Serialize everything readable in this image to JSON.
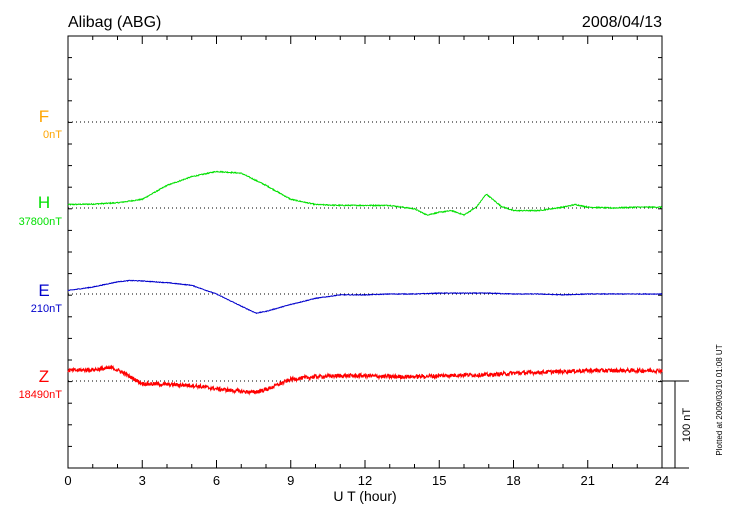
{
  "chart_data": {
    "type": "line",
    "title": "Alibag (ABG)",
    "date": "2008/04/13",
    "xlabel": "U T (hour)",
    "xlim": [
      0,
      24
    ],
    "xticks": [
      "0",
      "3",
      "6",
      "9",
      "12",
      "15",
      "18",
      "21",
      "24"
    ],
    "scale_bar_label": "100 nT",
    "scale_bar_value_nT": 100,
    "plotted_note": "Plotted at 2009/03/10 01:08 UT",
    "colors": {
      "F": "#ffa500",
      "H": "#00e000",
      "E": "#0000cc",
      "Z": "#ff0000"
    },
    "series": [
      {
        "name": "F",
        "baseline": "0nT",
        "values": [],
        "x": []
      },
      {
        "name": "H",
        "baseline": "37800nT",
        "x": [
          0,
          1,
          2,
          3,
          4,
          5,
          6,
          7,
          8,
          9,
          10,
          11,
          12,
          13,
          14,
          14.5,
          15,
          15.5,
          16,
          16.5,
          16.9,
          17.5,
          18,
          19,
          20,
          20.5,
          21,
          22,
          23,
          24
        ],
        "values": [
          4,
          4.5,
          6,
          10,
          26,
          36,
          42,
          40,
          26,
          10,
          4,
          3,
          3,
          3,
          -1,
          -8,
          -5,
          -3,
          -8,
          1,
          16,
          2,
          -3,
          -3,
          1,
          4,
          1,
          0,
          1,
          1
        ]
      },
      {
        "name": "E",
        "baseline": "210nT",
        "x": [
          0,
          1,
          2,
          2.5,
          3,
          4,
          5,
          6,
          7,
          7.6,
          8,
          9,
          10,
          11,
          12,
          13,
          14,
          15,
          16,
          17,
          18,
          19,
          20,
          21,
          22,
          23,
          24
        ],
        "values": [
          4,
          8,
          14,
          15.5,
          15,
          13,
          10,
          0,
          -14,
          -22,
          -20,
          -12,
          -5,
          -1,
          -1,
          0,
          0,
          1,
          1,
          1,
          0,
          0,
          -1,
          0,
          0,
          0,
          0
        ]
      },
      {
        "name": "Z",
        "baseline": "18490nT",
        "x": [
          0,
          1,
          1.8,
          2.2,
          3,
          4,
          5,
          6,
          7,
          7.5,
          8,
          9,
          10,
          11,
          12,
          13,
          14,
          15,
          16,
          17,
          18,
          19,
          20,
          21,
          22,
          23,
          24
        ],
        "values": [
          12,
          13,
          15,
          10,
          -3,
          -4,
          -5,
          -9,
          -12,
          -13,
          -10,
          2,
          5,
          6,
          6,
          5,
          5,
          6,
          7,
          7,
          9,
          10,
          11,
          12,
          12,
          12,
          12
        ]
      }
    ]
  }
}
